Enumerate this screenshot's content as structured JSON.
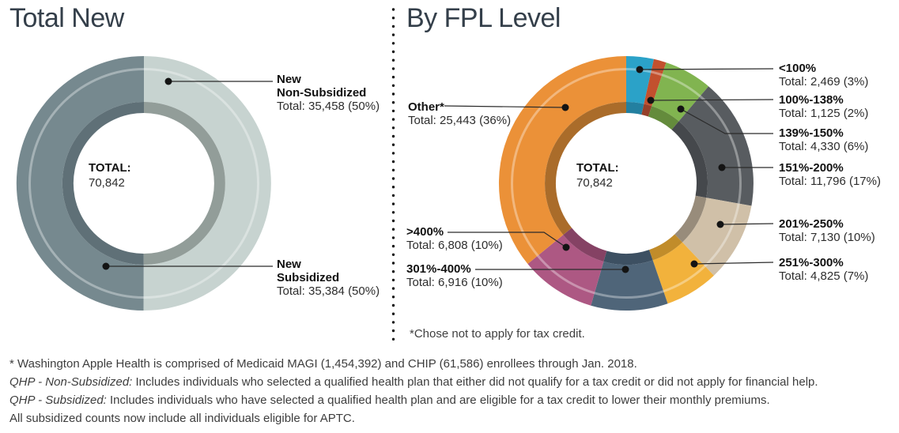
{
  "titles": {
    "left": "Total New",
    "right": "By FPL Level"
  },
  "chart_data": [
    {
      "type": "pie",
      "variant": "donut",
      "title": "Total New",
      "center": {
        "label": "TOTAL:",
        "value": "70,842"
      },
      "total": 70842,
      "legend_position": "callout-labels",
      "segments": [
        {
          "label": "New\nNon-Subsidized",
          "value": 35458,
          "percent": 50,
          "total_text": "Total: 35,458 (50%)",
          "color": "#c7d3d0",
          "shadow_color": "#929d99"
        },
        {
          "label": "New\nSubsidized",
          "value": 35384,
          "percent": 50,
          "total_text": "Total: 35,384 (50%)",
          "color": "#76898f",
          "shadow_color": "#5f7077"
        }
      ]
    },
    {
      "type": "pie",
      "variant": "donut",
      "title": "By FPL Level",
      "center": {
        "label": "TOTAL:",
        "value": "70,842"
      },
      "total": 70842,
      "legend_position": "callout-labels",
      "footnote": "*Chose not to apply for tax credit.",
      "segments": [
        {
          "label": "<100%",
          "value": 2469,
          "percent": 3,
          "total_text": "Total: 2,469 (3%)",
          "color": "#2ba2c8",
          "shadow_color": "#2380a0"
        },
        {
          "label": "100%-138%",
          "value": 1125,
          "percent": 2,
          "total_text": "Total: 1,125 (2%)",
          "color": "#c2502e",
          "shadow_color": "#95402a"
        },
        {
          "label": "139%-150%",
          "value": 4330,
          "percent": 6,
          "total_text": "Total: 4,330 (6%)",
          "color": "#81b450",
          "shadow_color": "#648b3c"
        },
        {
          "label": "151%-200%",
          "value": 11796,
          "percent": 17,
          "total_text": "Total: 11,796 (17%)",
          "color": "#585c60",
          "shadow_color": "#45484c"
        },
        {
          "label": "201%-250%",
          "value": 7130,
          "percent": 10,
          "total_text": "Total: 7,130 (10%)",
          "color": "#d0c0a8",
          "shadow_color": "#988c7b"
        },
        {
          "label": "251%-300%",
          "value": 4825,
          "percent": 7,
          "total_text": "Total: 4,825 (7%)",
          "color": "#f2b23c",
          "shadow_color": "#c18c2a"
        },
        {
          "label": "301%-400%",
          "value": 6916,
          "percent": 10,
          "total_text": "Total: 6,916 (10%)",
          "color": "#4f6579",
          "shadow_color": "#3d5062"
        },
        {
          "label": ">400%",
          "value": 6808,
          "percent": 10,
          "total_text": "Total: 6,808 (10%)",
          "color": "#ad5883",
          "shadow_color": "#854264"
        },
        {
          "label": "Other*",
          "value": 25443,
          "percent": 36,
          "total_text": "Total: 25,443 (36%)",
          "color": "#eb9138",
          "shadow_color": "#aa6c2a"
        }
      ]
    }
  ],
  "footnotes": [
    {
      "lead": "",
      "text": "* Washington Apple Health is comprised of Medicaid MAGI (1,454,392) and CHIP (61,586) enrollees through Jan. 2018."
    },
    {
      "lead": "QHP - Non-Subsidized:",
      "text": " Includes individuals who selected a qualified health plan that either did not qualify for a tax credit or did not apply for financial help."
    },
    {
      "lead": "QHP - Subsidized:",
      "text": " Includes individuals who have selected a qualified health plan and are eligible for a tax credit to lower their monthly premiums."
    },
    {
      "lead": "",
      "text": "All subsidized counts now include all individuals eligible for APTC."
    }
  ]
}
